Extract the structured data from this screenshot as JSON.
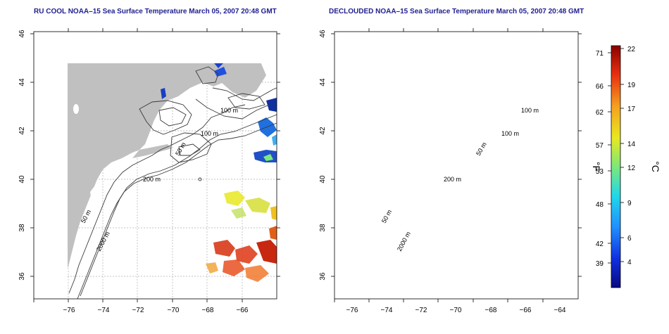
{
  "titles": {
    "left": "RU COOL NOAA–15 Sea Surface Temperature March 05, 2007 20:48 GMT",
    "right": "DECLOUDED NOAA–15 Sea Surface Temperature March 05, 2007 20:48 GMT"
  },
  "map_axes": {
    "x_ticks": [
      "−76",
      "−74",
      "−72",
      "−70",
      "−68",
      "−66",
      "−64"
    ],
    "y_ticks": [
      "46",
      "44",
      "42",
      "40",
      "38",
      "36"
    ],
    "x_range": [
      -77,
      -63
    ],
    "y_range": [
      35,
      46
    ]
  },
  "contour_labels": {
    "c100a": "100 m",
    "c100b": "100 m",
    "c50a": "50 m",
    "c200": "200 m",
    "c50b": "50 m",
    "c2000": "2000 m"
  },
  "colorbar": {
    "fahrenheit_label": "°F",
    "celsius_label": "°C",
    "fahrenheit_ticks": [
      "71",
      "66",
      "62",
      "57",
      "53",
      "48",
      "42",
      "39"
    ],
    "celsius_ticks": [
      "22",
      "19",
      "17",
      "14",
      "12",
      "9",
      "6",
      "4"
    ],
    "range_c": [
      1.5,
      22.5
    ]
  },
  "colors": {
    "land": "#c0c0c0",
    "grid": "#b0b0b0",
    "contour": "#3a3a3a",
    "title": "#1f1f8f"
  }
}
